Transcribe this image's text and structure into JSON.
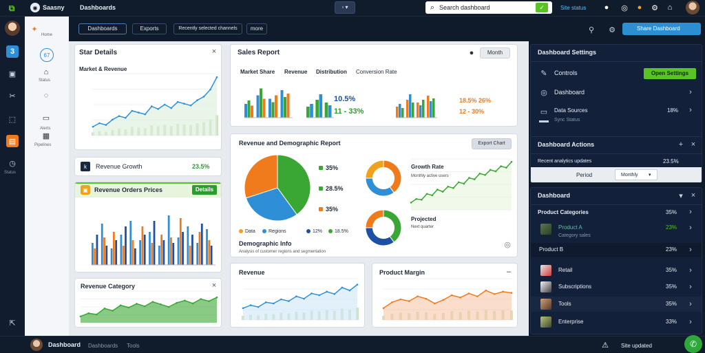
{
  "topbar": {
    "brand": "Saasny",
    "title": "Dashboards",
    "search_value": "Search dashboard",
    "account": "Site status"
  },
  "subnav": {
    "items": [
      "Home",
      "Status",
      "Alerts",
      "Pipelines"
    ]
  },
  "toolbar": {
    "buttons": [
      "Dashboards",
      "Exports",
      "Recently selected channels",
      "more"
    ],
    "share_label": "Share Dashboard"
  },
  "cards": {
    "details": {
      "title": "Star Details",
      "subtitle": "Market & Revenue"
    },
    "kpi_a": {
      "label": "Revenue Growth",
      "value": "23.5%"
    },
    "orders": {
      "title": "Revenue Orders Prices",
      "button": "Details"
    },
    "area_small": {
      "title": "Revenue Category"
    },
    "overview": {
      "title": "Sales Report",
      "button": "Month",
      "tabs": [
        "Market Share",
        "Revenue",
        "Distribution",
        "Conversion Rate"
      ],
      "stat1_value": "10.5%",
      "stat1_sub": "11 - 33%",
      "stat2_value": "18.5% 26%",
      "stat2_sub": "12 - 30%"
    },
    "donut_card": {
      "title": "Revenue and Demographic Report",
      "button": "Export Chart",
      "legend": [
        {
          "label": "35%",
          "color": "#f07b1d"
        },
        {
          "label": "28.5%",
          "color": "#3aa634"
        },
        {
          "label": "35%",
          "color": "#2f8fd6"
        }
      ],
      "footnote_items": [
        {
          "label": "Data",
          "color": "#f0a21d"
        },
        {
          "label": "Regions",
          "color": "#2f8fd6"
        },
        {
          "label": "12%",
          "color": "#1d4fa3"
        },
        {
          "label": "18.5%",
          "color": "#3aa634"
        }
      ],
      "footer_title": "Demographic Info",
      "footer_sub": "Analysis of customer regions and segmentation",
      "growth_title": "Growth Rate",
      "growth_sub": "Monthly active users",
      "growth2_title": "Projected",
      "growth2_sub": "Next quarter"
    },
    "bottom_a": {
      "title": "Revenue"
    },
    "bottom_b": {
      "title": "Product Margin"
    }
  },
  "right": {
    "header": "Dashboard Settings",
    "rows": [
      {
        "label": "Controls",
        "button": "Open Settings"
      },
      {
        "label": "Dashboard"
      },
      {
        "label": "Data Sources",
        "value": "18%",
        "sub": "Sync Status"
      }
    ],
    "section2": "Dashboard Actions",
    "section2_row": {
      "label": "Recent analytics updates",
      "value": "23.5%"
    },
    "select_label": "Period",
    "select_value": "Monthly",
    "section3": "Dashboard",
    "list_header": {
      "label": "Product Categories",
      "value": "35%"
    },
    "list": [
      {
        "label": "Product A",
        "sub": "Category sales",
        "value": "23%"
      },
      {
        "label": "Product B",
        "value": "23%"
      },
      {
        "label": "Retail",
        "value": "35%"
      },
      {
        "label": "Subscriptions",
        "value": "35%"
      },
      {
        "label": "Tools",
        "value": "35%"
      },
      {
        "label": "Enterprise",
        "value": "33%"
      }
    ]
  },
  "bottombar": {
    "user": "Dashboard",
    "links": [
      "Dashboards",
      "Tools"
    ],
    "status": "Site updated"
  },
  "colors": {
    "green": "#3aa634",
    "blue": "#2f8fd6",
    "orange": "#f07b1d",
    "navy": "#1d4fa3",
    "accent": "#58c322"
  },
  "chart_data": [
    {
      "type": "line",
      "name": "details_line",
      "x": [
        1,
        2,
        3,
        4,
        5,
        6,
        7,
        8,
        9,
        10,
        11,
        12,
        13,
        14,
        15,
        16,
        17,
        18,
        19,
        20
      ],
      "values": [
        10,
        14,
        12,
        18,
        22,
        20,
        28,
        26,
        24,
        33,
        30,
        35,
        31,
        38,
        36,
        34,
        40,
        44,
        52,
        66
      ],
      "ylim": [
        0,
        70
      ]
    },
    {
      "type": "bar",
      "name": "orders_bars",
      "series": [
        {
          "name": "a",
          "values": [
            40,
            75,
            30,
            55,
            80,
            45,
            60,
            35,
            90,
            50,
            70,
            40,
            65
          ]
        },
        {
          "name": "b",
          "values": [
            30,
            50,
            60,
            35,
            45,
            70,
            40,
            55,
            50,
            85,
            35,
            60,
            45
          ]
        },
        {
          "name": "c",
          "values": [
            55,
            35,
            45,
            70,
            30,
            55,
            80,
            45,
            40,
            60,
            55,
            75,
            35
          ]
        }
      ],
      "ylim": [
        0,
        100
      ]
    },
    {
      "type": "area",
      "name": "small_area",
      "values": [
        20,
        30,
        26,
        45,
        38,
        55,
        48,
        60,
        52,
        66,
        58,
        50,
        63,
        70,
        61,
        75,
        68,
        80
      ],
      "ylim": [
        0,
        100
      ]
    },
    {
      "type": "bar",
      "name": "overview_groups",
      "series": [
        {
          "name": "g1",
          "values": [
            40,
            65,
            55,
            80
          ]
        },
        {
          "name": "g2",
          "values": [
            50,
            85,
            45,
            60
          ]
        },
        {
          "name": "g3",
          "values": [
            35,
            55,
            65,
            70
          ]
        }
      ],
      "ylim": [
        0,
        100
      ]
    },
    {
      "type": "pie",
      "name": "main_pie",
      "values": [
        40,
        30,
        30
      ]
    },
    {
      "type": "pie",
      "name": "donut_a",
      "values": [
        40,
        35,
        25
      ]
    },
    {
      "type": "pie",
      "name": "donut_b",
      "values": [
        40,
        35,
        25
      ]
    },
    {
      "type": "line",
      "name": "growth_line",
      "values": [
        10,
        15,
        14,
        22,
        20,
        28,
        25,
        32,
        30,
        38,
        36,
        44,
        42,
        50,
        48,
        55,
        53,
        60,
        58,
        66
      ],
      "ylim": [
        0,
        70
      ]
    },
    {
      "type": "area",
      "name": "bottom_a_area",
      "values": [
        20,
        25,
        22,
        30,
        28,
        35,
        32,
        40,
        36,
        45,
        42,
        48,
        44,
        55,
        50,
        60
      ],
      "ylim": [
        0,
        70
      ]
    },
    {
      "type": "area",
      "name": "bottom_b_area",
      "values": [
        20,
        30,
        35,
        32,
        40,
        36,
        28,
        34,
        42,
        38,
        45,
        40,
        50,
        44,
        48,
        46
      ],
      "ylim": [
        0,
        70
      ]
    }
  ]
}
